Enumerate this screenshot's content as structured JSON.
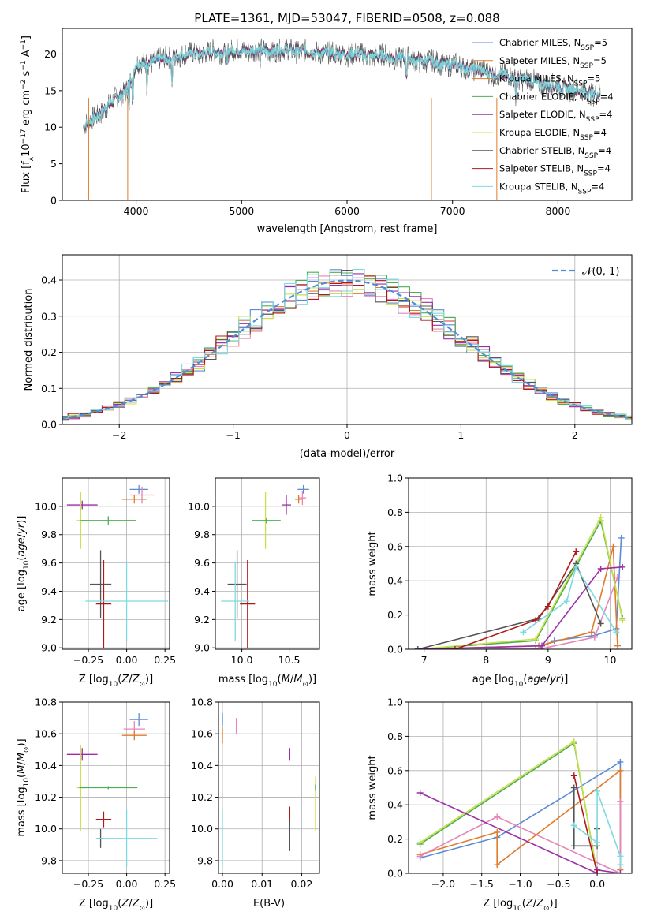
{
  "colors": {
    "chabrier_miles": "#5b8bd6",
    "salpeter_miles": "#e07b2a",
    "kroupa_miles": "#e07b2a",
    "chabrier_elodie": "#4caf50",
    "salpeter_elodie": "#9c2ea8",
    "kroupa_elodie": "#c9e04a",
    "chabrier_stelib": "#555555",
    "salpeter_stelib": "#b01818",
    "kroupa_stelib": "#7fd9e0",
    "salpeter_miles_pink": "#e884b8",
    "gauss": "#4f8cd9",
    "grid": "#b0b0b0"
  },
  "chart_data": [
    {
      "id": "spectrum",
      "type": "line",
      "title": "PLATE=1361, MJD=53047, FIBERID=0508, z=0.088",
      "xlabel": "wavelength [Angstrom, rest frame]",
      "ylabel": "Flux [fλ10⁻¹⁷ erg cm⁻² s⁻¹ A⁻¹]",
      "xlim": [
        3300,
        8700
      ],
      "ylim": [
        0,
        23.5
      ],
      "xticks": [
        "4000",
        "5000",
        "6000",
        "7000",
        "8000"
      ],
      "yticks": [
        "0",
        "5",
        "10",
        "15",
        "20"
      ],
      "grid": false,
      "legend_position": "upper-right",
      "legend": [
        {
          "label": "Chabrier MILES, N",
          "sub": "SSP",
          "tail": "=5",
          "color": "#5b8bd6"
        },
        {
          "label": "Salpeter MILES, N",
          "sub": "SSP",
          "tail": "=5",
          "color": "#e07b2a"
        },
        {
          "label": "Kroupa MILES, N",
          "sub": "SSP",
          "tail": "=5",
          "color": "#e07b2a"
        },
        {
          "label": "Chabrier ELODIE, N",
          "sub": "SSP",
          "tail": "=4",
          "color": "#4caf50"
        },
        {
          "label": "Salpeter ELODIE, N",
          "sub": "SSP",
          "tail": "=4",
          "color": "#9c2ea8"
        },
        {
          "label": "Kroupa ELODIE, N",
          "sub": "SSP",
          "tail": "=4",
          "color": "#c9e04a"
        },
        {
          "label": "Chabrier STELIB, N",
          "sub": "SSP",
          "tail": "=4",
          "color": "#555555"
        },
        {
          "label": "Salpeter STELIB, N",
          "sub": "SSP",
          "tail": "=4",
          "color": "#b01818"
        },
        {
          "label": "Kroupa STELIB, N",
          "sub": "SSP",
          "tail": "=4",
          "color": "#7fd9e0"
        }
      ],
      "continuum_points": [
        [
          3500,
          10
        ],
        [
          3700,
          12.5
        ],
        [
          3900,
          15
        ],
        [
          4000,
          18.5
        ],
        [
          4500,
          20
        ],
        [
          5000,
          20.5
        ],
        [
          5500,
          20.5
        ],
        [
          6000,
          20
        ],
        [
          6500,
          19.5
        ],
        [
          7000,
          18.5
        ],
        [
          7500,
          17
        ],
        [
          8000,
          15.5
        ],
        [
          8400,
          14.5
        ]
      ],
      "dips": [
        [
          3550,
          0
        ],
        [
          3920,
          0
        ],
        [
          6800,
          0
        ],
        [
          7420,
          0
        ]
      ]
    },
    {
      "id": "residuals",
      "type": "histogram",
      "xlabel": "(data-model)/error",
      "ylabel": "Normed distribution",
      "xlim": [
        -2.5,
        2.5
      ],
      "ylim": [
        0,
        0.47
      ],
      "xticks": [
        "−2",
        "−1",
        "0",
        "1",
        "2"
      ],
      "yticks": [
        "0.0",
        "0.1",
        "0.2",
        "0.3",
        "0.4"
      ],
      "grid": true,
      "legend": "𝒩(0, 1)",
      "bin_width": 0.1,
      "series_colors": [
        "#5b8bd6",
        "#e07b2a",
        "#e884b8",
        "#4caf50",
        "#9c2ea8",
        "#c9e04a",
        "#555555",
        "#b01818",
        "#7fd9e0"
      ]
    },
    {
      "id": "age_vs_Z",
      "type": "errorbar",
      "xlabel": "Z [log₁₀(Z/Z⊙)]",
      "ylabel": "age  [log₁₀(age/yr)]",
      "xlim": [
        -0.42,
        0.28
      ],
      "ylim": [
        8.99,
        10.2
      ],
      "xticks": [
        "−0.25",
        "0.00",
        "0.25"
      ],
      "yticks": [
        "9.0",
        "9.2",
        "9.4",
        "9.6",
        "9.8",
        "10.0"
      ],
      "points": [
        {
          "color": "#5b8bd6",
          "x": 0.08,
          "xerr": 0.06,
          "y": 10.12,
          "yerr": 0.03
        },
        {
          "color": "#e884b8",
          "x": 0.1,
          "xerr": 0.08,
          "y": 10.08,
          "yerr": 0.06
        },
        {
          "color": "#e07b2a",
          "x": 0.05,
          "xerr": 0.08,
          "y": 10.05,
          "yerr": 0.03
        },
        {
          "color": "#9c2ea8",
          "x": -0.29,
          "xerr": 0.1,
          "y": 10.01,
          "yerr": 0.03
        },
        {
          "color": "#c9e04a",
          "x": -0.3,
          "xerr": 0.03,
          "y": 9.9,
          "yerr": 0.2
        },
        {
          "color": "#4caf50",
          "x": -0.12,
          "xerr": 0.18,
          "y": 9.9,
          "yerr": 0.03
        },
        {
          "color": "#555555",
          "x": -0.17,
          "xerr": 0.07,
          "y": 9.45,
          "yerr": 0.24
        },
        {
          "color": "#b01818",
          "x": -0.15,
          "xerr": 0.05,
          "y": 9.31,
          "yerr": 0.31
        },
        {
          "color": "#7fd9e0",
          "x": 0.0,
          "xerr": 0.27,
          "y": 9.33,
          "yerr": 0.28
        }
      ]
    },
    {
      "id": "age_vs_mass",
      "type": "errorbar",
      "xlabel": "mass [log₁₀(M/M⊙)]",
      "ylabel": "",
      "xlim": [
        9.72,
        10.82
      ],
      "ylim": [
        8.99,
        10.2
      ],
      "xticks": [
        "10.0",
        "10.5"
      ],
      "yticks": [
        "9.0",
        "9.2",
        "9.4",
        "9.6",
        "9.8",
        "10.0"
      ],
      "points": [
        {
          "color": "#5b8bd6",
          "x": 10.65,
          "xerr": 0.06,
          "y": 10.12,
          "yerr": 0.03
        },
        {
          "color": "#e884b8",
          "x": 10.64,
          "xerr": 0.04,
          "y": 10.06,
          "yerr": 0.05
        },
        {
          "color": "#e07b2a",
          "x": 10.6,
          "xerr": 0.04,
          "y": 10.05,
          "yerr": 0.03
        },
        {
          "color": "#9c2ea8",
          "x": 10.47,
          "xerr": 0.05,
          "y": 10.01,
          "yerr": 0.07
        },
        {
          "color": "#c9e04a",
          "x": 10.25,
          "xerr": 0.02,
          "y": 9.9,
          "yerr": 0.2
        },
        {
          "color": "#4caf50",
          "x": 10.26,
          "xerr": 0.15,
          "y": 9.9,
          "yerr": 0.02
        },
        {
          "color": "#555555",
          "x": 9.95,
          "xerr": 0.1,
          "y": 9.45,
          "yerr": 0.24
        },
        {
          "color": "#b01818",
          "x": 10.06,
          "xerr": 0.08,
          "y": 9.31,
          "yerr": 0.31
        },
        {
          "color": "#7fd9e0",
          "x": 9.93,
          "xerr": 0.15,
          "y": 9.33,
          "yerr": 0.28
        }
      ]
    },
    {
      "id": "mass_weight_vs_age",
      "type": "line",
      "xlabel": "age  [log₁₀(age/yr)]",
      "ylabel": "mass weight",
      "xlim": [
        6.75,
        10.35
      ],
      "ylim": [
        0,
        1.0
      ],
      "xticks": [
        "7",
        "8",
        "9",
        "10"
      ],
      "yticks": [
        "0.0",
        "0.2",
        "0.4",
        "0.6",
        "0.8",
        "1.0"
      ],
      "grid": true,
      "series": [
        {
          "color": "#5b8bd6",
          "x": [
            6.9,
            8.8,
            9.1,
            9.75,
            10.1,
            10.18
          ],
          "y": [
            0.0,
            0.0,
            0.05,
            0.08,
            0.12,
            0.65
          ]
        },
        {
          "color": "#e07b2a",
          "x": [
            6.9,
            8.85,
            9.7,
            10.05,
            10.12
          ],
          "y": [
            0.0,
            0.02,
            0.1,
            0.6,
            0.02
          ]
        },
        {
          "color": "#e884b8",
          "x": [
            6.9,
            8.85,
            9.75,
            10.12
          ],
          "y": [
            0.0,
            0.0,
            0.07,
            0.42
          ]
        },
        {
          "color": "#4caf50",
          "x": [
            6.9,
            8.8,
            9.85,
            10.2
          ],
          "y": [
            0.0,
            0.05,
            0.75,
            0.18
          ]
        },
        {
          "color": "#c9e04a",
          "x": [
            6.9,
            8.8,
            9.85,
            10.2
          ],
          "y": [
            0.0,
            0.06,
            0.77,
            0.17
          ]
        },
        {
          "color": "#9c2ea8",
          "x": [
            6.9,
            8.9,
            9.85,
            10.2
          ],
          "y": [
            0.0,
            0.02,
            0.47,
            0.48
          ]
        },
        {
          "color": "#555555",
          "x": [
            6.9,
            8.85,
            9.45,
            9.85
          ],
          "y": [
            0.0,
            0.18,
            0.5,
            0.15
          ]
        },
        {
          "color": "#b01818",
          "x": [
            7.5,
            8.8,
            9.0,
            9.45
          ],
          "y": [
            0.0,
            0.17,
            0.25,
            0.57
          ]
        },
        {
          "color": "#7fd9e0",
          "x": [
            8.6,
            9.3,
            9.45,
            10.1
          ],
          "y": [
            0.1,
            0.28,
            0.48,
            0.1
          ]
        }
      ]
    },
    {
      "id": "mass_vs_Z",
      "type": "errorbar",
      "xlabel": "Z [log₁₀(Z/Z⊙)]",
      "ylabel": "mass [log₁₀(M/M⊙)]",
      "xlim": [
        -0.42,
        0.28
      ],
      "ylim": [
        9.72,
        10.8
      ],
      "xticks": [
        "−0.25",
        "0.00",
        "0.25"
      ],
      "yticks": [
        "9.8",
        "10.0",
        "10.2",
        "10.4",
        "10.6",
        "10.8"
      ],
      "points": [
        {
          "color": "#5b8bd6",
          "x": 0.08,
          "xerr": 0.06,
          "y": 10.69,
          "yerr": 0.04
        },
        {
          "color": "#e884b8",
          "x": 0.05,
          "xerr": 0.07,
          "y": 10.63,
          "yerr": 0.05
        },
        {
          "color": "#e07b2a",
          "x": 0.05,
          "xerr": 0.08,
          "y": 10.59,
          "yerr": 0.03
        },
        {
          "color": "#9c2ea8",
          "x": -0.29,
          "xerr": 0.1,
          "y": 10.47,
          "yerr": 0.04
        },
        {
          "color": "#c9e04a",
          "x": -0.3,
          "xerr": 0.03,
          "y": 10.26,
          "yerr": 0.27
        },
        {
          "color": "#4caf50",
          "x": -0.12,
          "xerr": 0.19,
          "y": 10.26,
          "yerr": 0.01
        },
        {
          "color": "#555555",
          "x": -0.17,
          "xerr": 0.02,
          "y": 9.94,
          "yerr": 0.06
        },
        {
          "color": "#b01818",
          "x": -0.15,
          "xerr": 0.05,
          "y": 10.06,
          "yerr": 0.05
        },
        {
          "color": "#7fd9e0",
          "x": 0.0,
          "xerr": 0.2,
          "y": 9.94,
          "yerr": 0.18
        }
      ]
    },
    {
      "id": "mass_vs_ebv",
      "type": "errorbar",
      "xlabel": "E(B-V)",
      "ylabel": "",
      "xlim": [
        -0.001,
        0.0245
      ],
      "ylim": [
        9.72,
        10.8
      ],
      "xticks": [
        "0.00",
        "0.01",
        "0.02"
      ],
      "yticks": [
        "9.8",
        "10.0",
        "10.2",
        "10.4",
        "10.6",
        "10.8"
      ],
      "points": [
        {
          "color": "#5b8bd6",
          "x": 0.0,
          "xerr": 0.0,
          "y": 10.69,
          "yerr": 0.04
        },
        {
          "color": "#e884b8",
          "x": 0.0035,
          "xerr": 0.0,
          "y": 10.65,
          "yerr": 0.05
        },
        {
          "color": "#e07b2a",
          "x": 0.0,
          "xerr": 0.0,
          "y": 10.59,
          "yerr": 0.05
        },
        {
          "color": "#9c2ea8",
          "x": 0.017,
          "xerr": 0.0,
          "y": 10.47,
          "yerr": 0.04
        },
        {
          "color": "#c9e04a",
          "x": 0.0235,
          "xerr": 0.0,
          "y": 10.16,
          "yerr": 0.17
        },
        {
          "color": "#4caf50",
          "x": 0.0235,
          "xerr": 0.0,
          "y": 10.26,
          "yerr": 0.02
        },
        {
          "color": "#555555",
          "x": 0.017,
          "xerr": 0.0,
          "y": 10.0,
          "yerr": 0.14
        },
        {
          "color": "#b01818",
          "x": 0.017,
          "xerr": 0.0,
          "y": 10.1,
          "yerr": 0.04
        },
        {
          "color": "#7fd9e0",
          "x": 0.0,
          "xerr": 0.0,
          "y": 9.94,
          "yerr": 0.18
        }
      ]
    },
    {
      "id": "mass_weight_vs_Z",
      "type": "line",
      "xlabel": "Z [log₁₀(Z/Z⊙)]",
      "ylabel": "mass weight",
      "xlim": [
        -2.45,
        0.45
      ],
      "ylim": [
        0,
        1.0
      ],
      "xticks": [
        "−2.0",
        "−1.5",
        "−1.0",
        "−0.5",
        "0.0"
      ],
      "yticks": [
        "0.0",
        "0.2",
        "0.4",
        "0.6",
        "0.8",
        "1.0"
      ],
      "grid": true,
      "series": [
        {
          "color": "#5b8bd6",
          "x": [
            -2.3,
            -1.3,
            0.3,
            0.3
          ],
          "y": [
            0.09,
            0.21,
            0.65,
            0.05
          ]
        },
        {
          "color": "#e07b2a",
          "x": [
            -2.3,
            -1.3,
            -1.3,
            0.3,
            0.3
          ],
          "y": [
            0.11,
            0.24,
            0.05,
            0.6,
            0.02
          ]
        },
        {
          "color": "#e884b8",
          "x": [
            -2.3,
            -1.3,
            0.3,
            0.3
          ],
          "y": [
            0.1,
            0.33,
            0.0,
            0.42
          ]
        },
        {
          "color": "#4caf50",
          "x": [
            -2.3,
            -0.3,
            0.0,
            0.3
          ],
          "y": [
            0.17,
            0.76,
            0.0,
            0.0
          ]
        },
        {
          "color": "#c9e04a",
          "x": [
            -2.3,
            -0.3,
            0.0,
            0.3
          ],
          "y": [
            0.18,
            0.77,
            0.0,
            0.0
          ]
        },
        {
          "color": "#9c2ea8",
          "x": [
            -2.3,
            0.0,
            0.0,
            0.3
          ],
          "y": [
            0.47,
            0.0,
            0.02,
            0.0
          ]
        },
        {
          "color": "#555555",
          "x": [
            -0.3,
            -0.3,
            0.0,
            0.0
          ],
          "y": [
            0.5,
            0.16,
            0.16,
            0.26
          ]
        },
        {
          "color": "#b01818",
          "x": [
            -0.3,
            0.0,
            0.0
          ],
          "y": [
            0.57,
            0.0,
            0.0
          ]
        },
        {
          "color": "#7fd9e0",
          "x": [
            -0.3,
            0.0,
            0.0,
            0.3,
            0.3
          ],
          "y": [
            0.28,
            0.18,
            0.48,
            0.1,
            0.05
          ]
        }
      ]
    }
  ]
}
